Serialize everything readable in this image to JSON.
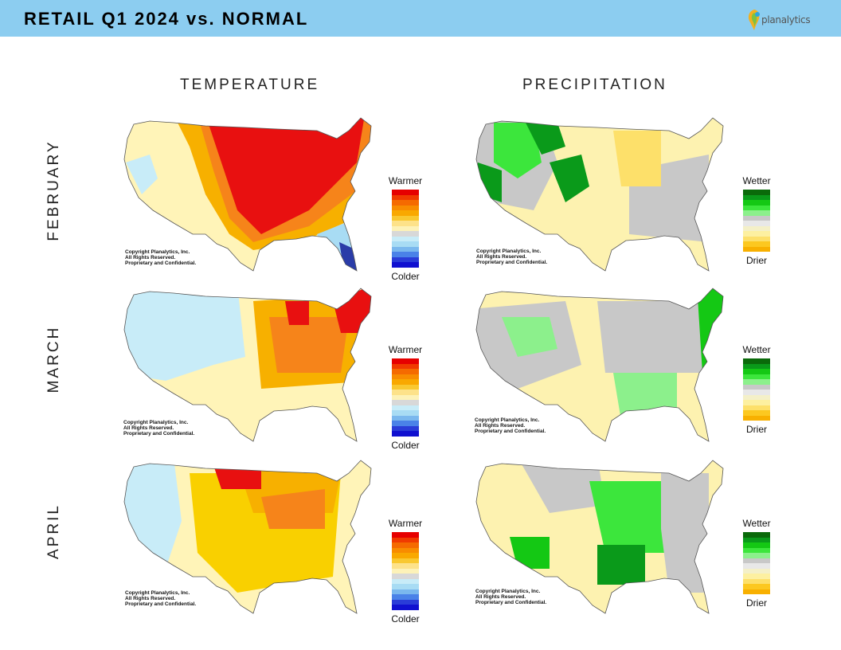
{
  "header": {
    "title": "RETAIL Q1 2024 vs. NORMAL",
    "logo_text": "planalytics",
    "logo_icon": "planalytics-logo-icon"
  },
  "columns": {
    "temperature": "TEMPERATURE",
    "precipitation": "PRECIPITATION"
  },
  "rows": [
    {
      "label": "FEBRUARY"
    },
    {
      "label": "MARCH"
    },
    {
      "label": "APRIL"
    }
  ],
  "temp_legend": {
    "top": "Warmer",
    "bottom": "Colder",
    "colors": [
      "#e60000",
      "#f03a00",
      "#f56a00",
      "#f88c00",
      "#f9a800",
      "#f9c830",
      "#fde28a",
      "#fdf2b8",
      "#d8d8d8",
      "#c8ecf8",
      "#a8dcf4",
      "#7ab8ee",
      "#4a82e8",
      "#2a3cd8",
      "#1010d0"
    ]
  },
  "precip_legend": {
    "top": "Wetter",
    "bottom": "Drier",
    "colors": [
      "#0a6a0a",
      "#0a9a1a",
      "#14c814",
      "#3ce63c",
      "#8cf08c",
      "#c8c8c8",
      "#e8e8e8",
      "#f4f0c8",
      "#fdf0a0",
      "#fde06a",
      "#fcc820",
      "#f8b000"
    ]
  },
  "copyright": {
    "line1": "Copyright Planalytics, Inc.",
    "line2": "All Rights Reserved.",
    "line3": "Proprietary and Confidential."
  }
}
